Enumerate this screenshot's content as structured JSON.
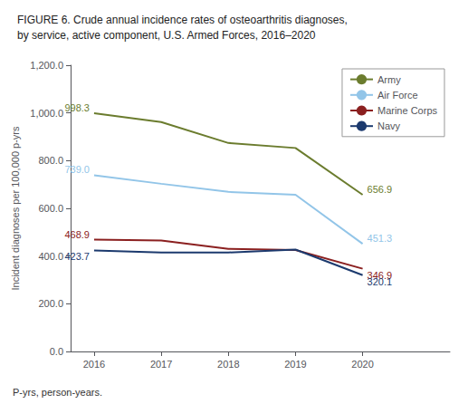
{
  "chart_data": {
    "type": "line",
    "title": "FIGURE 6. Crude annual incidence rates of osteoarthritis diagnoses,\nby service, active component, U.S. Armed Forces, 2016–2020",
    "footnote": "P-yrs, person-years.",
    "y_label": "Incident diagnoses per 100,000 p-yrs",
    "x": [
      2016,
      2017,
      2018,
      2019,
      2020
    ],
    "series": [
      {
        "name": "Army",
        "color": "#6b7c2e",
        "values": [
          998.3,
          962.0,
          874.0,
          853.0,
          656.9
        ]
      },
      {
        "name": "Air Force",
        "color": "#92c5e8",
        "values": [
          739.0,
          703.0,
          669.0,
          657.0,
          451.3
        ]
      },
      {
        "name": "Marine Corps",
        "color": "#8b2020",
        "values": [
          468.9,
          465.0,
          430.0,
          425.0,
          346.9
        ]
      },
      {
        "name": "Navy",
        "color": "#1c3a6e",
        "values": [
          423.7,
          415.0,
          415.0,
          427.0,
          320.1
        ]
      }
    ],
    "annotations": [
      {
        "series": "Army",
        "x": 2016,
        "text": "998.3"
      },
      {
        "series": "Air Force",
        "x": 2016,
        "text": "739.0"
      },
      {
        "series": "Marine Corps",
        "x": 2016,
        "text": "468.9"
      },
      {
        "series": "Navy",
        "x": 2016,
        "text": "423.7"
      },
      {
        "series": "Army",
        "x": 2020,
        "text": "656.9"
      },
      {
        "series": "Air Force",
        "x": 2020,
        "text": "451.3"
      },
      {
        "series": "Marine Corps",
        "x": 2020,
        "text": "346.9"
      },
      {
        "series": "Navy",
        "x": 2020,
        "text": "320.1"
      }
    ],
    "xlim": [
      2015.65,
      2021.3
    ],
    "xticks": [
      2016,
      2017,
      2018,
      2019,
      2020
    ],
    "ylim": [
      0,
      1200
    ],
    "yticks": [
      {
        "value": 0,
        "label": "0.0"
      },
      {
        "value": 200,
        "label": "200.0"
      },
      {
        "value": 400,
        "label": "400.0"
      },
      {
        "value": 600,
        "label": "600.0"
      },
      {
        "value": 800,
        "label": "800.0"
      },
      {
        "value": 1000,
        "label": "1,000.0"
      },
      {
        "value": 1200,
        "label": "1,200.0"
      }
    ],
    "grid": false,
    "legend": "upper right"
  }
}
